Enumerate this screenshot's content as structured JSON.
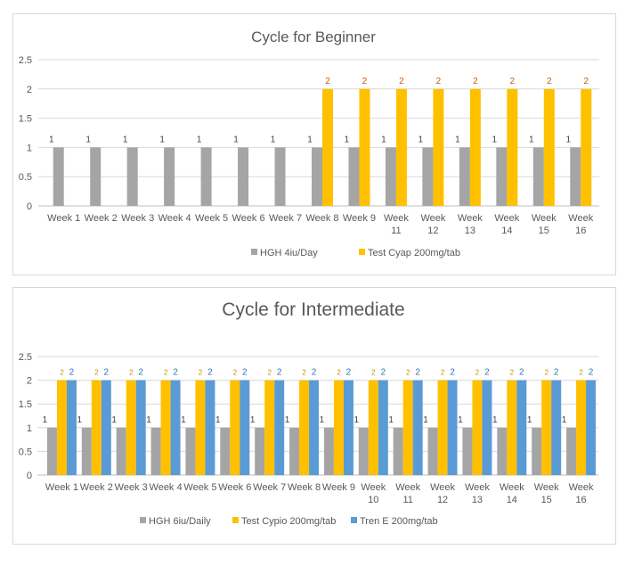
{
  "chart_data": [
    {
      "type": "bar",
      "title": "Cycle for Beginner",
      "categories": [
        "Week 1",
        "Week 2",
        "Week 3",
        "Week 4",
        "Week 5",
        "Week 6",
        "Week 7",
        "Week 8",
        "Week 9",
        "Week 11",
        "Week 12",
        "Week 13",
        "Week 14",
        "Week 15",
        "Week 16"
      ],
      "categories_full": [
        "Week 1",
        "Week 2",
        "Week 3",
        "Week 4",
        "Week 5",
        "Week 6",
        "Week 7",
        "Week 8",
        "Week 9",
        "Week 11",
        "Week 12",
        "Week 13",
        "Week 14",
        "Week 15",
        "Week 16"
      ],
      "ylim": [
        0,
        2.5
      ],
      "yticks": [
        "0",
        "0.5",
        "1",
        "1.5",
        "2",
        "2.5"
      ],
      "grid": true,
      "legend": "bottom",
      "series": [
        {
          "name": "HGH 4iu/Day",
          "color": "#a5a5a5",
          "label_color": "#404040",
          "values": [
            1,
            1,
            1,
            1,
            1,
            1,
            1,
            1,
            1,
            1,
            1,
            1,
            1,
            1,
            1
          ]
        },
        {
          "name": "Test Cyap 200mg/tab",
          "color": "#ffc000",
          "label_color": "#c55a11",
          "values": [
            null,
            null,
            null,
            null,
            null,
            null,
            null,
            2,
            2,
            2,
            2,
            2,
            2,
            2,
            2
          ]
        }
      ]
    },
    {
      "type": "bar",
      "title": "Cycle for Intermediate",
      "categories": [
        "Week 1",
        "Week 2",
        "Week 3",
        "Week 4",
        "Week 5",
        "Week 6",
        "Week 7",
        "Week 8",
        "Week 9",
        "Week 10",
        "Week 11",
        "Week 12",
        "Week 13",
        "Week 14",
        "Week 15",
        "Week 16"
      ],
      "ylim": [
        0,
        2.5
      ],
      "yticks": [
        "0",
        "0.5",
        "1",
        "1.5",
        "2",
        "2.5"
      ],
      "grid": true,
      "legend": "bottom",
      "series": [
        {
          "name": "HGH 6iu/Daily",
          "color": "#a5a5a5",
          "label_color": "#404040",
          "values": [
            1,
            1,
            1,
            1,
            1,
            1,
            1,
            1,
            1,
            1,
            1,
            1,
            1,
            1,
            1,
            1
          ]
        },
        {
          "name": "Test Cypio 200mg/tab",
          "color": "#ffc000",
          "label_color": "#bf9000",
          "values": [
            2,
            2,
            2,
            2,
            2,
            2,
            2,
            2,
            2,
            2,
            2,
            2,
            2,
            2,
            2,
            2
          ]
        },
        {
          "name": "Tren E 200mg/tab",
          "color": "#5b9bd5",
          "label_color": "#2e75b6",
          "values": [
            2,
            2,
            2,
            2,
            2,
            2,
            2,
            2,
            2,
            2,
            2,
            2,
            2,
            2,
            2,
            2
          ]
        }
      ]
    }
  ]
}
